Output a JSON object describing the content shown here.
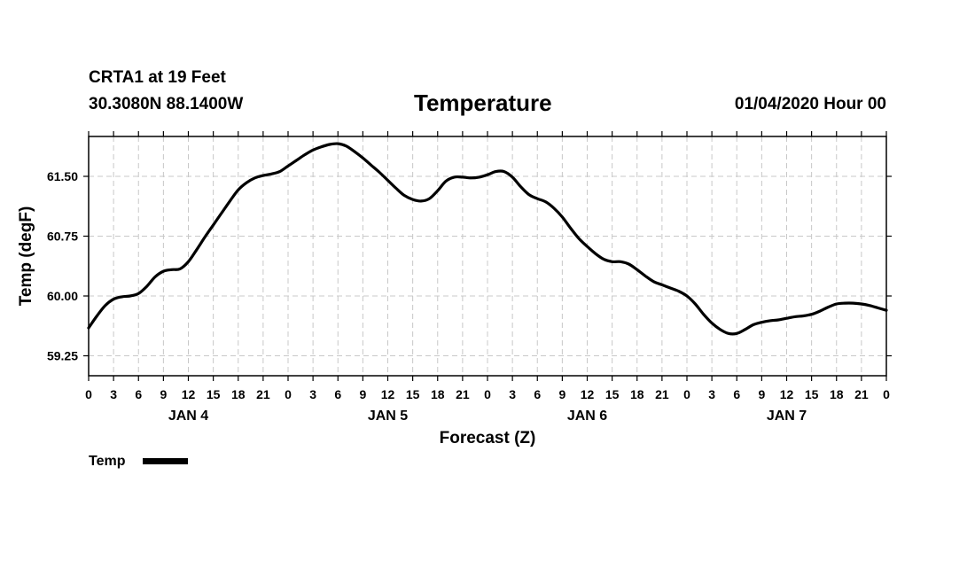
{
  "header": {
    "station": "CRTA1 at 19 Feet",
    "coords": "30.3080N 88.1400W",
    "title": "Temperature",
    "datetime": "01/04/2020 Hour 00"
  },
  "chart_data": {
    "type": "line",
    "title": "Temperature",
    "xlabel": "Forecast (Z)",
    "ylabel": "Temp (degF)",
    "xlim": [
      0,
      96
    ],
    "ylim": [
      59.0,
      62.0
    ],
    "yticks": [
      59.25,
      60.0,
      60.75,
      61.5
    ],
    "ytick_labels": [
      "59.25",
      "60.00",
      "60.75",
      "61.50"
    ],
    "xtick_hours": [
      0,
      3,
      6,
      9,
      12,
      15,
      18,
      21,
      24,
      27,
      30,
      33,
      36,
      39,
      42,
      45,
      48,
      51,
      54,
      57,
      60,
      63,
      66,
      69,
      72,
      75,
      78,
      81,
      84,
      87,
      90,
      93,
      96
    ],
    "xtick_labels": [
      "0",
      "3",
      "6",
      "9",
      "12",
      "15",
      "18",
      "21",
      "0",
      "3",
      "6",
      "9",
      "12",
      "15",
      "18",
      "21",
      "0",
      "3",
      "6",
      "9",
      "12",
      "15",
      "18",
      "21",
      "0",
      "3",
      "6",
      "9",
      "12",
      "15",
      "18",
      "21",
      "0"
    ],
    "day_labels": [
      {
        "label": "JAN 4",
        "hour": 12
      },
      {
        "label": "JAN 5",
        "hour": 36
      },
      {
        "label": "JAN 6",
        "hour": 60
      },
      {
        "label": "JAN 7",
        "hour": 84
      }
    ],
    "grid": true,
    "legend": {
      "position": "bottom-left",
      "entries": [
        "Temp"
      ]
    },
    "series": [
      {
        "name": "Temp",
        "x": [
          0,
          1,
          2,
          3,
          4,
          5,
          6,
          7,
          8,
          9,
          10,
          11,
          12,
          13,
          14,
          15,
          16,
          17,
          18,
          19,
          20,
          21,
          22,
          23,
          24,
          25,
          26,
          27,
          28,
          29,
          30,
          31,
          32,
          33,
          34,
          35,
          36,
          37,
          38,
          39,
          40,
          41,
          42,
          43,
          44,
          45,
          46,
          47,
          48,
          49,
          50,
          51,
          52,
          53,
          54,
          55,
          56,
          57,
          58,
          59,
          60,
          61,
          62,
          63,
          64,
          65,
          66,
          67,
          68,
          69,
          70,
          71,
          72,
          73,
          74,
          75,
          76,
          77,
          78,
          79,
          80,
          81,
          82,
          83,
          84,
          85,
          86,
          87,
          88,
          89,
          90,
          91,
          92,
          93,
          94,
          95,
          96
        ],
        "values": [
          59.6,
          59.75,
          59.88,
          59.96,
          59.99,
          60.0,
          60.03,
          60.12,
          60.24,
          60.31,
          60.33,
          60.34,
          60.43,
          60.58,
          60.74,
          60.89,
          61.04,
          61.19,
          61.33,
          61.42,
          61.48,
          61.51,
          61.53,
          61.56,
          61.63,
          61.7,
          61.77,
          61.83,
          61.87,
          61.9,
          61.91,
          61.88,
          61.81,
          61.73,
          61.64,
          61.55,
          61.45,
          61.35,
          61.26,
          61.21,
          61.19,
          61.22,
          61.32,
          61.44,
          61.49,
          61.49,
          61.48,
          61.49,
          61.52,
          61.56,
          61.56,
          61.49,
          61.37,
          61.27,
          61.22,
          61.18,
          61.1,
          60.99,
          60.85,
          60.72,
          60.62,
          60.53,
          60.46,
          60.43,
          60.43,
          60.4,
          60.33,
          60.25,
          60.18,
          60.14,
          60.1,
          60.06,
          60.0,
          59.9,
          59.77,
          59.66,
          59.58,
          59.53,
          59.53,
          59.58,
          59.64,
          59.67,
          59.69,
          59.7,
          59.72,
          59.74,
          59.75,
          59.77,
          59.81,
          59.86,
          59.9,
          59.91,
          59.91,
          59.9,
          59.88,
          59.85,
          59.82
        ]
      }
    ]
  }
}
